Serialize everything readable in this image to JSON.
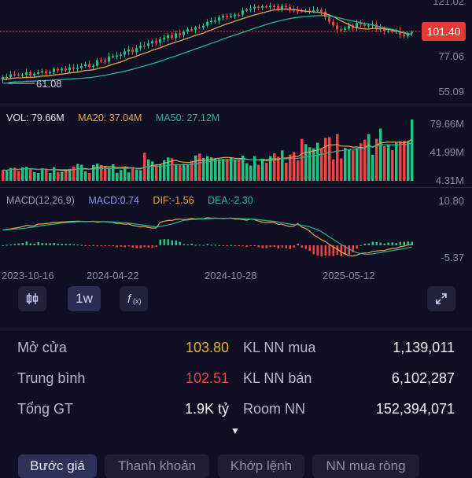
{
  "price_chart": {
    "axis_labels": [
      "121.02",
      "77.06",
      "55.09"
    ],
    "current_price": "101.40",
    "min_label": "61.08"
  },
  "volume_chart": {
    "legend": {
      "vol": "VOL: 79.66M",
      "ma20": "MA20: 37.04M",
      "ma50": "MA50: 27.12M"
    },
    "axis_labels": [
      "79.66M",
      "41.99M",
      "4.31M"
    ]
  },
  "macd_chart": {
    "legend": {
      "name": "MACD(12,26,9)",
      "macd": "MACD:0.74",
      "dif": "DIF:-1.56",
      "dea": "DEA:-2.30"
    },
    "axis_labels": [
      "10.80",
      "-5.37"
    ]
  },
  "dates": [
    "2023-10-16",
    "2024-04-22",
    "2024-10-28",
    "2025-05-12"
  ],
  "toolbar": {
    "interval_label": "1w"
  },
  "stats": {
    "rows": [
      {
        "label_left": "Mở cửa",
        "value_left": "103.80",
        "label_right": "KL NN mua",
        "value_right": "1,139,011"
      },
      {
        "label_left": "Trung bình",
        "value_left": "102.51",
        "label_right": "KL NN bán",
        "value_right": "6,102,287"
      },
      {
        "label_left": "Tổng GT",
        "value_left": "1.9K tỷ",
        "label_right": "Room NN",
        "value_right": "152,394,071"
      }
    ]
  },
  "tabs": [
    "Bước giá",
    "Thanh khoản",
    "Khớp lệnh",
    "NN mua ròng"
  ],
  "colors": {
    "background": "#0f0f23",
    "up": "#26c281",
    "down": "#ef4343",
    "ma_short": "#e8a44a",
    "ma_long": "#2bb39a",
    "open_price": "#e8b230",
    "avg_price": "#ef4343",
    "macd_label": "#8f8ff0"
  }
}
